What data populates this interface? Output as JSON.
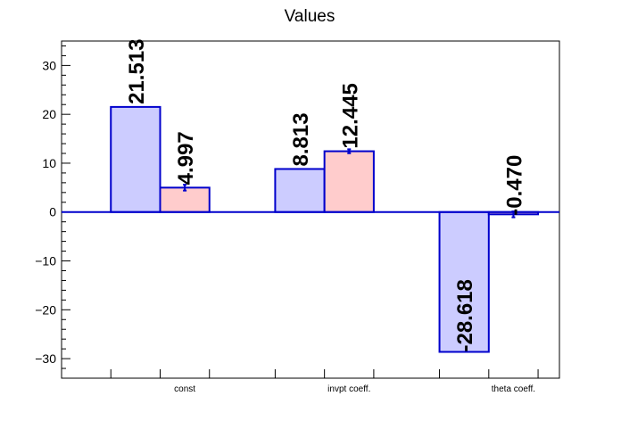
{
  "chart_data": {
    "type": "bar",
    "title": "Values",
    "categories": [
      "const",
      "invpt coeff.",
      "theta coeff."
    ],
    "series": [
      {
        "values": [
          21.513,
          8.813,
          -28.618
        ],
        "labels": [
          "21.513",
          "8.813",
          "-28.618"
        ],
        "errors": [
          0,
          0,
          0
        ],
        "fill": "#ccccff",
        "stroke": "#0000cc"
      },
      {
        "values": [
          4.997,
          12.445,
          -0.47
        ],
        "labels": [
          "4.997",
          "12.445",
          "-0.470"
        ],
        "errors": [
          0.6,
          0.4,
          0.6
        ],
        "fill": "#ffcccc",
        "stroke": "#0000cc"
      }
    ],
    "ylim": [
      -34,
      35
    ],
    "yticks": [
      -30,
      -20,
      -10,
      0,
      10,
      20,
      30
    ],
    "ytick_labels": [
      "−30",
      "−20",
      "−10",
      "0",
      "10",
      "20",
      "30"
    ],
    "grid": false,
    "legend": "none"
  }
}
